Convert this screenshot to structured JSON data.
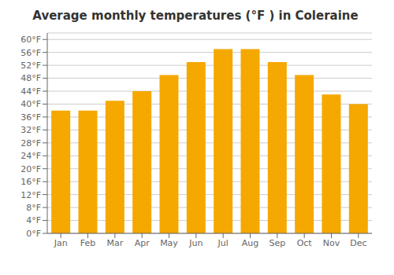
{
  "chart_data": {
    "type": "bar",
    "title": "Average monthly temperatures (°F ) in Coleraine",
    "categories": [
      "Jan",
      "Feb",
      "Mar",
      "Apr",
      "May",
      "Jun",
      "Jul",
      "Aug",
      "Sep",
      "Oct",
      "Nov",
      "Dec"
    ],
    "values": [
      38,
      38,
      41,
      44,
      49,
      53,
      57,
      57,
      53,
      49,
      43,
      40
    ],
    "color": "#F5A800",
    "ylim": [
      0,
      62
    ],
    "yticks": [
      {
        "value": 0,
        "label": "0°F"
      },
      {
        "value": 4,
        "label": "4°F"
      },
      {
        "value": 8,
        "label": "8°F"
      },
      {
        "value": 12,
        "label": "12°F"
      },
      {
        "value": 16,
        "label": "16°F"
      },
      {
        "value": 20,
        "label": "20°F"
      },
      {
        "value": 24,
        "label": "24°F"
      },
      {
        "value": 28,
        "label": "28°F"
      },
      {
        "value": 32,
        "label": "32°F"
      },
      {
        "value": 36,
        "label": "36°F"
      },
      {
        "value": 40,
        "label": "40°F"
      },
      {
        "value": 44,
        "label": "44°F"
      },
      {
        "value": 48,
        "label": "48°F"
      },
      {
        "value": 52,
        "label": "52°F"
      },
      {
        "value": 56,
        "label": "56°F"
      },
      {
        "value": 60,
        "label": "60°F"
      }
    ],
    "grid": true
  }
}
